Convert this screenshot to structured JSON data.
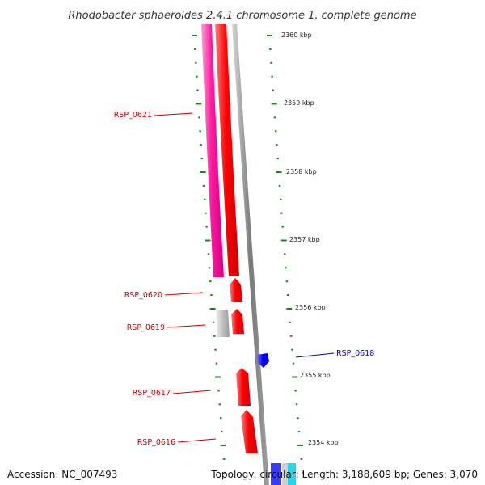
{
  "title": "Rhodobacter sphaeroides 2.4.1 chromosome 1, complete genome",
  "accession": "Accession: NC_007493",
  "topology": "Topology: circular; Length: 3,188,609 bp; Genes: 3,070",
  "kbp_labels": [
    "2360 kbp",
    "2359 kbp",
    "2358 kbp",
    "2357 kbp",
    "2356 kbp",
    "2355 kbp",
    "2354 kbp"
  ],
  "genes": [
    {
      "name": "RSP_0621",
      "color": "#cc0000"
    },
    {
      "name": "RSP_0620",
      "color": "#cc0000"
    },
    {
      "name": "RSP_0619",
      "color": "#cc0000"
    },
    {
      "name": "RSP_0618",
      "color": "#0000cc"
    },
    {
      "name": "RSP_0617",
      "color": "#cc0000"
    },
    {
      "name": "RSP_0616",
      "color": "#cc0000"
    }
  ],
  "colors": {
    "pink_feature": "#ff1aa0",
    "red_feature": "#ff0000",
    "grey_feature": "#c0c0c0",
    "blue_feature": "#0000ff",
    "backbone": "#8a8a8a",
    "ticks": "#1a8a1a"
  }
}
